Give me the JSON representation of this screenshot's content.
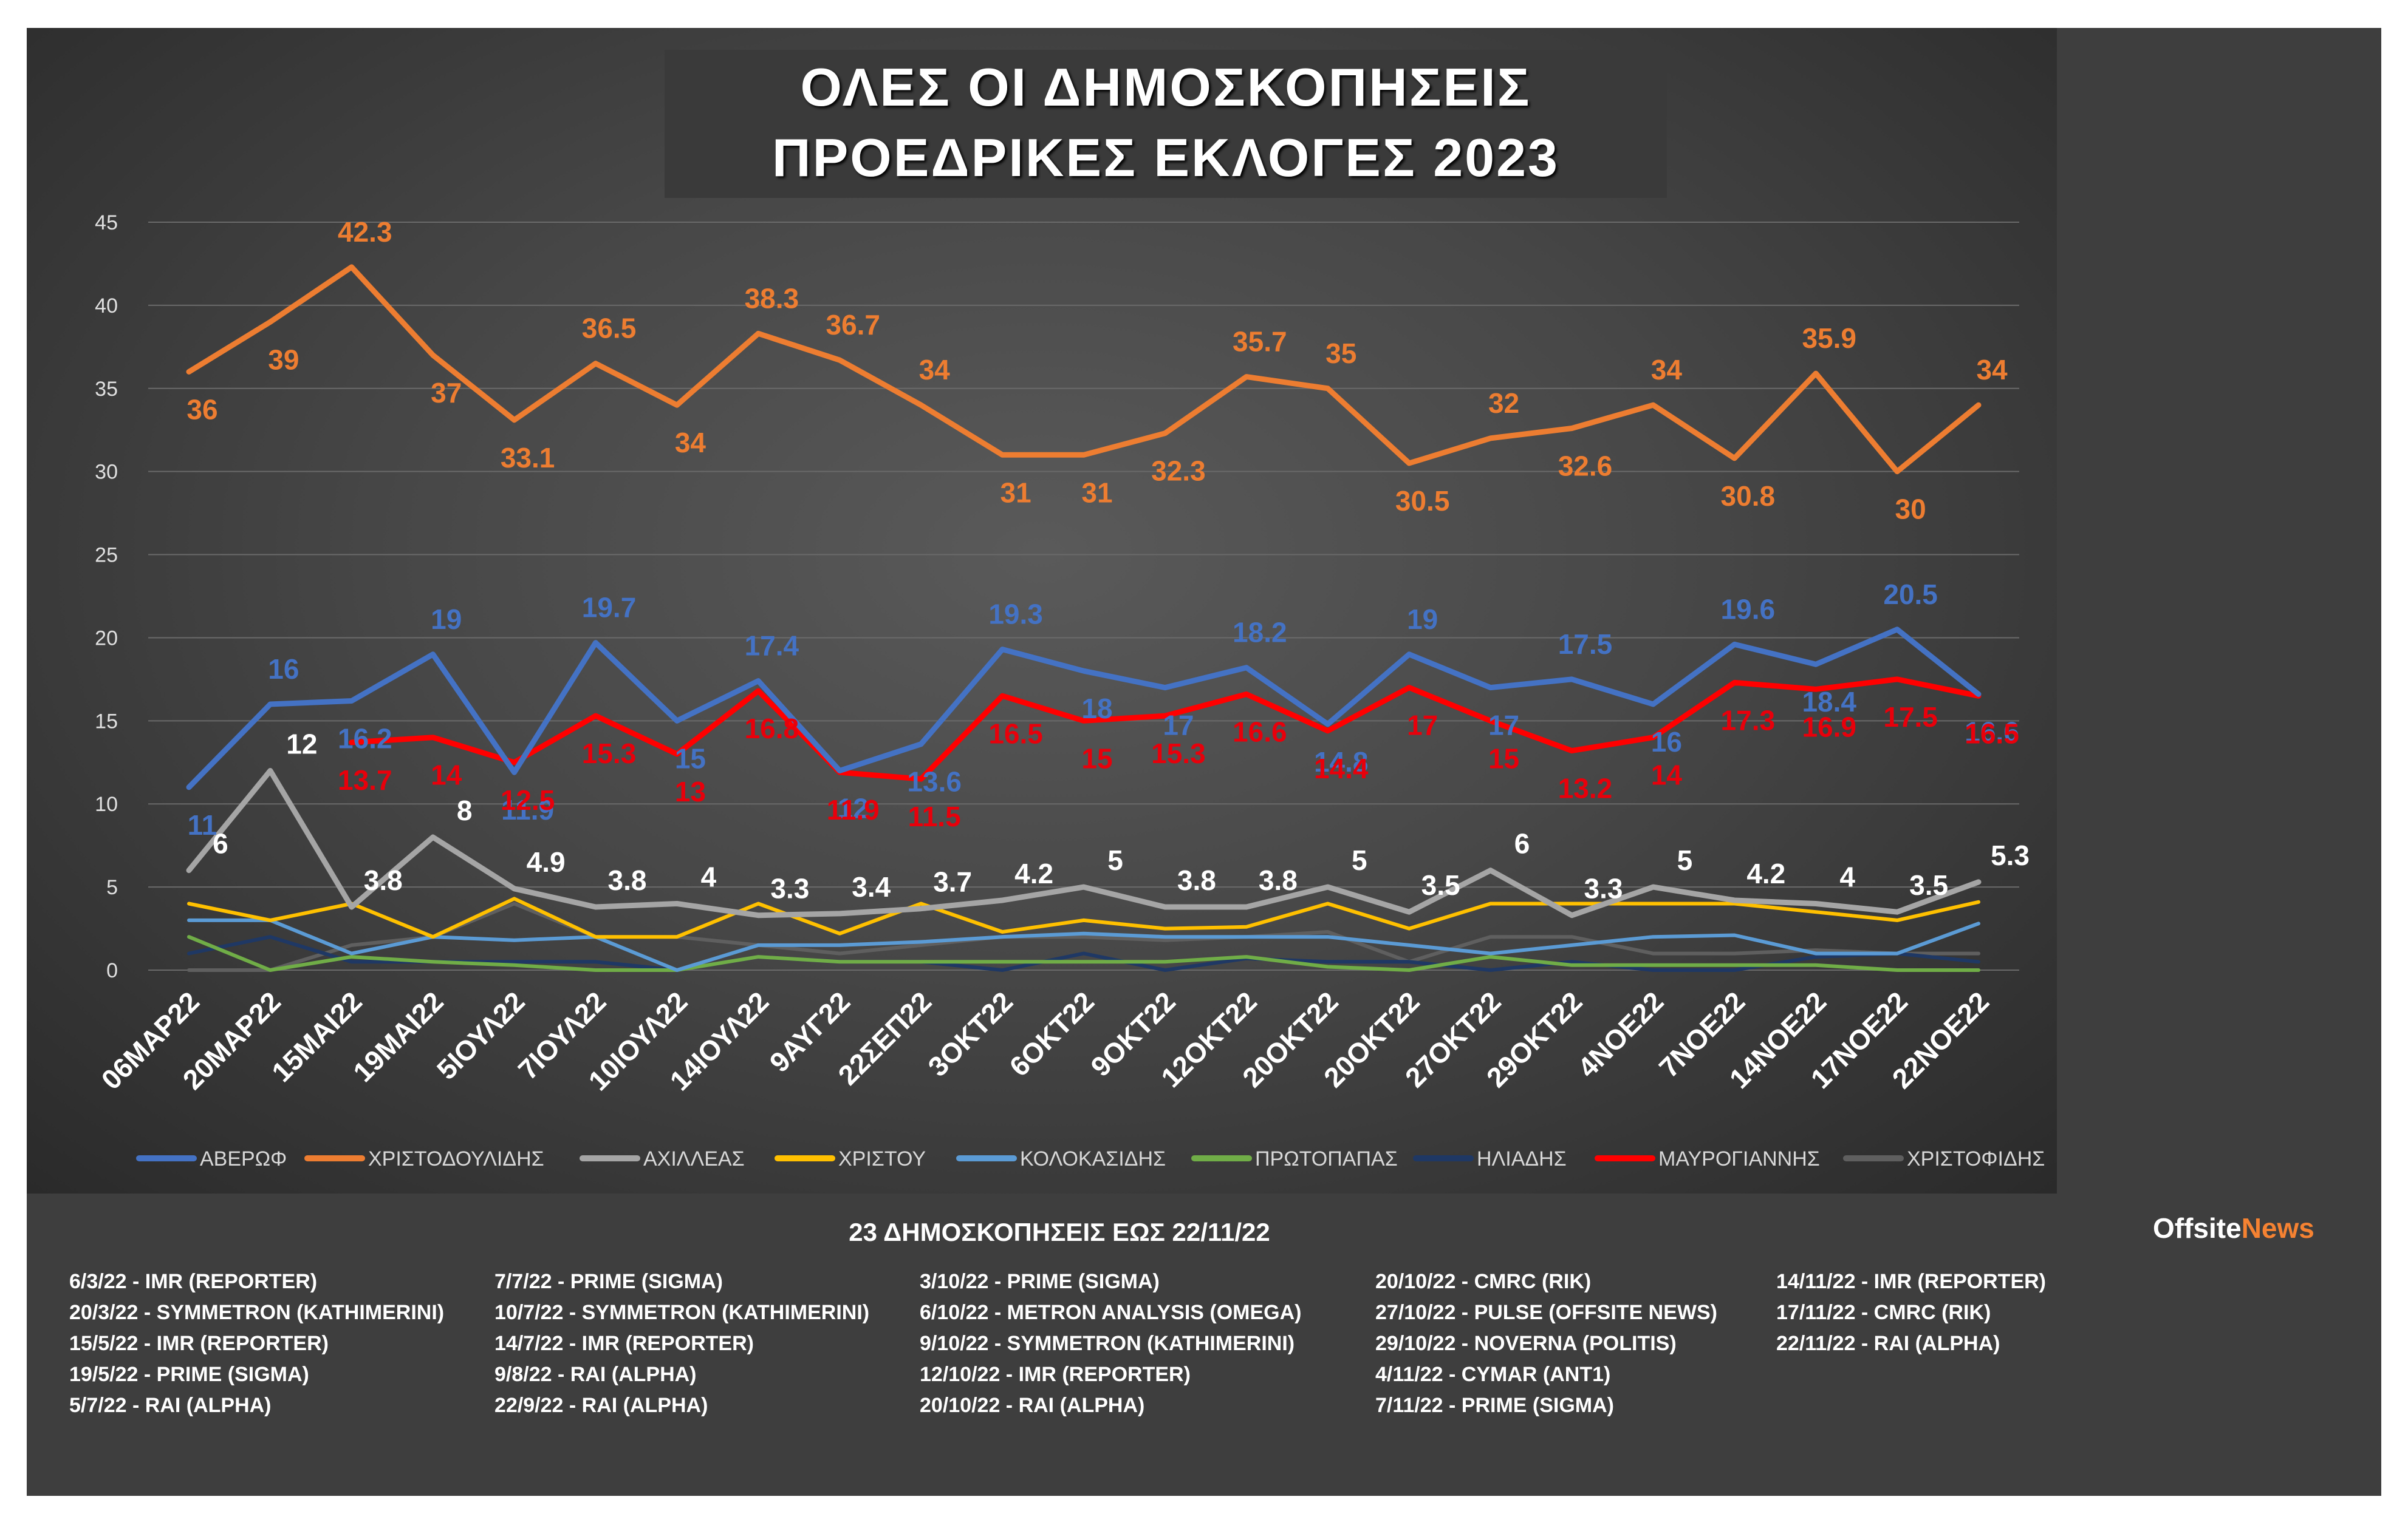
{
  "title": {
    "line1": "ΟΛΕΣ ΟΙ ΔΗΜΟΣΚΟΠΗΣΕΙΣ",
    "line2": "ΠΡΟΕΔΡΙΚΕΣ ΕΚΛΟΓΕΣ 2023"
  },
  "subtitle": "23  ΔΗΜΟΣΚΟΠΗΣΕΙΣ ΕΩΣ  22/11/22",
  "brand": {
    "part1": "Offsite",
    "part2": "News"
  },
  "chart_data": {
    "type": "line",
    "title": "ΟΛΕΣ ΟΙ ΔΗΜΟΣΚΟΠΗΣΕΙΣ ΠΡΟΕΔΡΙΚΕΣ ΕΚΛΟΓΕΣ 2023",
    "ylim": [
      0,
      45
    ],
    "yticks": [
      "0",
      "5",
      "10",
      "15",
      "20",
      "25",
      "30",
      "35",
      "40",
      "45"
    ],
    "categories": [
      "06ΜΑΡ22",
      "20ΜΑΡ22",
      "15ΜΑΙ22",
      "19ΜΑΙ22",
      "5ΙΟΥΛ22",
      "7ΙΟΥΛ22",
      "10ΙΟΥΛ22",
      "14ΙΟΥΛ22",
      "9ΑΥΓ22",
      "22ΣΕΠ22",
      "3ΟΚΤ22",
      "6ΟΚΤ22",
      "9ΟΚΤ22",
      "12ΟΚΤ22",
      "20ΟΚΤ22",
      "20ΟΚΤ22",
      "27ΟΚΤ22",
      "29ΟΚΤ22",
      "4ΝΟΕ22",
      "7ΝΟΕ22",
      "14ΝΟΕ22",
      "17ΝΟΕ22",
      "22ΝΟΕ22"
    ],
    "legend_position": "bottom",
    "series": [
      {
        "name": "ΑΒΕΡΩΦ",
        "color": "#4472c4",
        "label_color": "#4472c4",
        "values": [
          11,
          16,
          16.2,
          19,
          11.9,
          19.7,
          15,
          17.4,
          12,
          13.6,
          19.3,
          18,
          17,
          18.2,
          14.8,
          19,
          17,
          17.5,
          16,
          19.6,
          18.4,
          20.5,
          16.6
        ],
        "labels": [
          "11",
          "16",
          "16.2",
          "19",
          "11.9",
          "19.7",
          "15",
          "17.4",
          "12",
          "13.6",
          "19.3",
          "18",
          "17",
          "18.2",
          "14.8",
          "19",
          "17",
          "17.5",
          "16",
          "19.6",
          "18.4",
          "20.5",
          "16.6"
        ]
      },
      {
        "name": "ΧΡΙΣΤΟΔΟΥΛΙΔΗΣ",
        "color": "#ed7d31",
        "label_color": "#ed7d31",
        "values": [
          36,
          39,
          42.3,
          37,
          33.1,
          36.5,
          34,
          38.3,
          36.7,
          34,
          31,
          31,
          32.3,
          35.7,
          35,
          30.5,
          32,
          32.6,
          34,
          30.8,
          35.9,
          30,
          34
        ],
        "labels": [
          "36",
          "39",
          "42.3",
          "37",
          "33.1",
          "36.5",
          "34",
          "38.3",
          "36.7",
          "34",
          "31",
          "31",
          "32.3",
          "35.7",
          "35",
          "30.5",
          "32",
          "32.6",
          "34",
          "30.8",
          "35.9",
          "30",
          "34"
        ]
      },
      {
        "name": "ΑΧΙΛΛΕΑΣ",
        "color": "#a5a5a5",
        "label_color": "#ffffff",
        "values": [
          6,
          12,
          3.8,
          8,
          4.9,
          3.8,
          4,
          3.3,
          3.4,
          3.7,
          4.2,
          5,
          3.8,
          3.8,
          5,
          3.5,
          6,
          3.3,
          5,
          4.2,
          4,
          3.5,
          5.3
        ],
        "labels": [
          "6",
          "12",
          "3.8",
          "8",
          "4.9",
          "3.8",
          "4",
          "3.3",
          "3.4",
          "3.7",
          "4.2",
          "5",
          "3.8",
          "3.8",
          "5",
          "3.5",
          "6",
          "3.3",
          "5",
          "4.2",
          "4",
          "3.5",
          "5.3"
        ]
      },
      {
        "name": "ΧΡΙΣΤΟΥ",
        "color": "#ffc000",
        "values": [
          4,
          3,
          4,
          2,
          4.3,
          2,
          2,
          4,
          2.2,
          4,
          2.3,
          3,
          2.5,
          2.6,
          4,
          2.5,
          4,
          4,
          4,
          4,
          3.5,
          3,
          4.1
        ]
      },
      {
        "name": "ΚΟΛΟΚΑΣΙΔΗΣ",
        "color": "#5b9bd5",
        "values": [
          3,
          3,
          1,
          2,
          1.8,
          2,
          0,
          1.5,
          1.5,
          1.7,
          2,
          2.2,
          2,
          2,
          2,
          1.5,
          1,
          1.5,
          2,
          2.1,
          1,
          1,
          2.8
        ]
      },
      {
        "name": "ΠΡΩΤΟΠΑΠΑΣ",
        "color": "#70ad47",
        "values": [
          2,
          0,
          0.8,
          0.5,
          0.3,
          0,
          0,
          0.8,
          0.5,
          0.5,
          0.5,
          0.5,
          0.5,
          0.8,
          0.2,
          0,
          0.8,
          0.3,
          0.3,
          0.3,
          0.3,
          0,
          0
        ]
      },
      {
        "name": "ΗΛΙΑΔΗΣ",
        "color": "#1f3864",
        "values": [
          1,
          2,
          0.5,
          0.5,
          0.5,
          0.5,
          0,
          0.8,
          0.5,
          0.5,
          0,
          1,
          0,
          0.7,
          0.5,
          0.5,
          0,
          0.5,
          0,
          0,
          0.8,
          1,
          0.5
        ]
      },
      {
        "name": "ΜΑΥΡΟΓΙΑΝΝΗΣ",
        "color": "#ff0000",
        "label_color": "#e8000b",
        "start": 2,
        "values": [
          null,
          null,
          13.7,
          14,
          12.5,
          15.3,
          13,
          16.8,
          11.9,
          11.5,
          16.5,
          15,
          15.3,
          16.6,
          14.4,
          17,
          15,
          13.2,
          14,
          17.3,
          16.9,
          17.5,
          16.5
        ],
        "labels": [
          null,
          null,
          "13.7",
          "14",
          "12.5",
          "15.3",
          "13",
          "16.8",
          "11.9",
          "11.5",
          "16.5",
          "15",
          "15.3",
          "16.6",
          "14.4",
          "17",
          "15",
          "13.2",
          "14",
          "17.3",
          "16.9",
          "17.5",
          "16.5"
        ]
      },
      {
        "name": "ΧΡΙΣΤΟΦΙΔΗΣ",
        "color": "#5f5f5f",
        "values": [
          0,
          0,
          1.5,
          2,
          4,
          2,
          2,
          1.5,
          1,
          1.5,
          2,
          2,
          1.8,
          2,
          2.3,
          0.5,
          2,
          2,
          1,
          1,
          1.2,
          1,
          1
        ]
      }
    ]
  },
  "sources": {
    "col1": [
      "6/3/22 - IMR (REPORTER)",
      "20/3/22 - SYMMETRON (KATHIMERINI)",
      "15/5/22 - IMR (REPORTER)",
      "19/5/22 - PRIME (SIGMA)",
      "5/7/22 - RAI (ALPHA)"
    ],
    "col2": [
      "7/7/22 - PRIME (SIGMA)",
      "10/7/22 - SYMMETRON (KATHIMERINI)",
      "14/7/22 - IMR (REPORTER)",
      "9/8/22 - RAI (ALPHA)",
      "22/9/22 - RAI (ALPHA)"
    ],
    "col3": [
      "3/10/22 - PRIME (SIGMA)",
      "6/10/22 - METRON ANALYSIS (OMEGA)",
      "9/10/22 - SYMMETRON (KATHIMERINI)",
      "12/10/22 - IMR (REPORTER)",
      "20/10/22 - RAI (ALPHA)"
    ],
    "col4": [
      "20/10/22 - CMRC (RIK)",
      "27/10/22 - PULSE (OFFSITE NEWS)",
      "29/10/22 - NOVERNA (POLITIS)",
      "4/11/22 - CYMAR (ANT1)",
      "7/11/22 - PRIME (SIGMA)"
    ],
    "col5": [
      "14/11/22 - IMR (REPORTER)",
      "17/11/22 - CMRC (RIK)",
      "22/11/22 - RAI (ALPHA)"
    ]
  }
}
